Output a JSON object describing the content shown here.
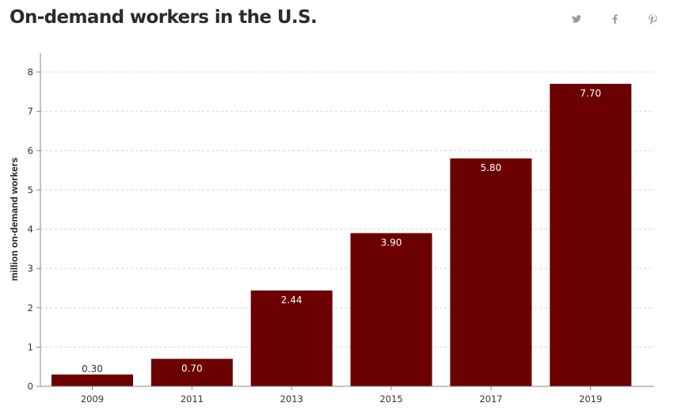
{
  "header": {
    "title": "On-demand workers in the U.S."
  },
  "share": {
    "icons": [
      "twitter-icon",
      "facebook-icon",
      "pinterest-icon"
    ],
    "icon_color": "#999999"
  },
  "chart_data": {
    "type": "bar",
    "title": "On-demand workers in the U.S.",
    "xlabel": "",
    "ylabel": "million on-demand workers",
    "categories": [
      "2009",
      "2011",
      "2013",
      "2015",
      "2017",
      "2019"
    ],
    "values": [
      0.3,
      0.7,
      2.44,
      3.9,
      5.8,
      7.7
    ],
    "value_labels": [
      "0.30",
      "0.70",
      "2.44",
      "3.90",
      "5.80",
      "7.70"
    ],
    "ylim": [
      0,
      8
    ],
    "yticks": [
      "0",
      "1",
      "2",
      "3",
      "4",
      "5",
      "6",
      "7",
      "8"
    ],
    "grid": true,
    "legend": "none",
    "bar_color": "#6b0000",
    "label_color_inside": "#ffffff",
    "label_color_outside": "#333333"
  }
}
